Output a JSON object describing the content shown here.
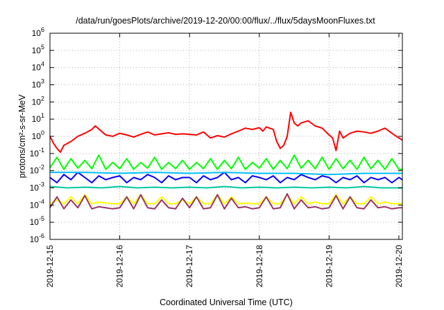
{
  "chart_data": {
    "type": "line",
    "title": "/data/run/goesPlots/archive/2019-12-20/00:00/flux/../flux/5daysMoonFluxes.txt",
    "xlabel": "Coordinated Universal Time (UTC)",
    "ylabel": "protons/cm²-s-sr-MeV",
    "yscale": "log",
    "ylim": [
      1e-06,
      1000000.0
    ],
    "xlim": [
      0,
      5.05
    ],
    "grid": true,
    "x_ticks": [
      {
        "x": 0,
        "label": "2019-12-15"
      },
      {
        "x": 1,
        "label": "2019-12-16"
      },
      {
        "x": 2,
        "label": "2019-12-17"
      },
      {
        "x": 3,
        "label": "2019-12-18"
      },
      {
        "x": 4,
        "label": "2019-12-19"
      },
      {
        "x": 5,
        "label": "2019-12-20"
      }
    ],
    "y_ticks": [
      {
        "base": "10",
        "exp": "-6",
        "value": 1e-06
      },
      {
        "base": "10",
        "exp": "-5",
        "value": 1e-05
      },
      {
        "base": "10",
        "exp": "-4",
        "value": 0.0001
      },
      {
        "base": "10",
        "exp": "-3",
        "value": 0.001
      },
      {
        "base": "10",
        "exp": "-2",
        "value": 0.01
      },
      {
        "base": "10",
        "exp": "-1",
        "value": 0.1
      },
      {
        "base": "10",
        "exp": "0",
        "value": 1
      },
      {
        "base": "10",
        "exp": "1",
        "value": 10
      },
      {
        "base": "10",
        "exp": "2",
        "value": 100
      },
      {
        "base": "10",
        "exp": "3",
        "value": 1000
      },
      {
        "base": "10",
        "exp": "4",
        "value": 10000
      },
      {
        "base": "10",
        "exp": "5",
        "value": 100000
      },
      {
        "base": "10",
        "exp": "6",
        "value": 1000000
      }
    ],
    "series": [
      {
        "color": "#ff0000",
        "x": [
          0,
          0.05,
          0.1,
          0.15,
          0.2,
          0.3,
          0.4,
          0.5,
          0.6,
          0.65,
          0.75,
          0.8,
          0.9,
          1.0,
          1.1,
          1.2,
          1.3,
          1.4,
          1.5,
          1.6,
          1.7,
          1.8,
          1.9,
          2.0,
          2.1,
          2.2,
          2.3,
          2.4,
          2.5,
          2.6,
          2.7,
          2.8,
          2.9,
          3.0,
          3.05,
          3.1,
          3.2,
          3.25,
          3.3,
          3.35,
          3.4,
          3.45,
          3.5,
          3.55,
          3.6,
          3.7,
          3.8,
          3.9,
          4.0,
          4.05,
          4.1,
          4.15,
          4.2,
          4.3,
          4.4,
          4.5,
          4.6,
          4.7,
          4.8,
          4.9,
          5.0,
          5.05
        ],
        "y": [
          1.0,
          0.4,
          0.2,
          0.12,
          0.3,
          0.5,
          1.0,
          1.5,
          2.5,
          4.0,
          1.8,
          1.2,
          1.0,
          1.5,
          1.2,
          0.9,
          1.3,
          1.8,
          1.2,
          1.4,
          1.6,
          1.3,
          1.4,
          1.3,
          1.2,
          1.8,
          0.8,
          1.1,
          0.9,
          1.4,
          2.0,
          3.0,
          2.5,
          3.2,
          2.0,
          3.5,
          2.5,
          0.5,
          0.2,
          0.3,
          1.0,
          25,
          6.0,
          4.0,
          6.0,
          8.0,
          4.0,
          3.0,
          1.2,
          0.8,
          0.15,
          2.0,
          0.8,
          1.5,
          2.0,
          1.8,
          1.5,
          2.0,
          3.0,
          1.5,
          0.8,
          0.6
        ]
      },
      {
        "color": "#00ff00",
        "x": [
          0,
          0.1,
          0.2,
          0.3,
          0.4,
          0.5,
          0.6,
          0.7,
          0.8,
          0.9,
          1.0,
          1.1,
          1.2,
          1.3,
          1.4,
          1.5,
          1.6,
          1.7,
          1.8,
          1.9,
          2.0,
          2.1,
          2.2,
          2.3,
          2.4,
          2.5,
          2.6,
          2.7,
          2.8,
          2.9,
          3.0,
          3.1,
          3.2,
          3.3,
          3.4,
          3.5,
          3.6,
          3.7,
          3.8,
          3.9,
          4.0,
          4.1,
          4.2,
          4.3,
          4.4,
          4.5,
          4.6,
          4.7,
          4.8,
          4.9,
          5.0,
          5.05
        ],
        "y": [
          0.015,
          0.06,
          0.012,
          0.05,
          0.014,
          0.04,
          0.013,
          0.08,
          0.012,
          0.03,
          0.013,
          0.05,
          0.012,
          0.03,
          0.014,
          0.06,
          0.012,
          0.03,
          0.013,
          0.04,
          0.012,
          0.03,
          0.013,
          0.05,
          0.012,
          0.04,
          0.013,
          0.06,
          0.012,
          0.03,
          0.014,
          0.05,
          0.012,
          0.04,
          0.013,
          0.08,
          0.014,
          0.04,
          0.013,
          0.06,
          0.012,
          0.05,
          0.013,
          0.04,
          0.012,
          0.06,
          0.013,
          0.04,
          0.012,
          0.05,
          0.012,
          0.012
        ]
      },
      {
        "color": "#0000ff",
        "x": [
          0,
          0.1,
          0.2,
          0.3,
          0.4,
          0.5,
          0.6,
          0.7,
          0.8,
          0.9,
          1.0,
          1.1,
          1.2,
          1.3,
          1.4,
          1.5,
          1.6,
          1.7,
          1.8,
          1.9,
          2.0,
          2.1,
          2.2,
          2.3,
          2.4,
          2.5,
          2.6,
          2.7,
          2.8,
          2.9,
          3.0,
          3.1,
          3.2,
          3.3,
          3.4,
          3.5,
          3.6,
          3.7,
          3.8,
          3.9,
          4.0,
          4.1,
          4.2,
          4.3,
          4.4,
          4.5,
          4.6,
          4.7,
          4.8,
          4.9,
          5.0,
          5.05
        ],
        "y": [
          0.004,
          0.002,
          0.006,
          0.003,
          0.008,
          0.004,
          0.002,
          0.005,
          0.003,
          0.004,
          0.005,
          0.002,
          0.004,
          0.003,
          0.006,
          0.004,
          0.002,
          0.005,
          0.003,
          0.004,
          0.004,
          0.002,
          0.005,
          0.003,
          0.004,
          0.008,
          0.003,
          0.004,
          0.002,
          0.005,
          0.004,
          0.003,
          0.005,
          0.002,
          0.004,
          0.003,
          0.006,
          0.004,
          0.003,
          0.005,
          0.004,
          0.002,
          0.004,
          0.003,
          0.005,
          0.002,
          0.004,
          0.003,
          0.004,
          0.002,
          0.004,
          0.003
        ]
      },
      {
        "color": "#00bfff",
        "x": [
          0,
          0.5,
          1.0,
          1.5,
          2.0,
          2.5,
          3.0,
          3.5,
          4.0,
          4.5,
          5.0,
          5.05
        ],
        "y": [
          0.008,
          0.008,
          0.007,
          0.008,
          0.007,
          0.008,
          0.007,
          0.007,
          0.006,
          0.007,
          0.007,
          0.007
        ]
      },
      {
        "color": "#00c8a0",
        "x": [
          0,
          0.25,
          0.5,
          0.75,
          1.0,
          1.25,
          1.5,
          1.75,
          2.0,
          2.25,
          2.5,
          2.75,
          3.0,
          3.25,
          3.5,
          3.75,
          4.0,
          4.25,
          4.5,
          4.75,
          5.0,
          5.05
        ],
        "y": [
          0.0012,
          0.001,
          0.0011,
          0.001,
          0.0012,
          0.001,
          0.0011,
          0.001,
          0.0011,
          0.001,
          0.0012,
          0.001,
          0.0011,
          0.001,
          0.0011,
          0.001,
          0.0011,
          0.001,
          0.0012,
          0.001,
          0.001,
          0.001
        ]
      },
      {
        "color": "#ffff00",
        "x": [
          0,
          0.1,
          0.2,
          0.3,
          0.4,
          0.5,
          0.6,
          0.7,
          0.8,
          0.9,
          1.0,
          1.1,
          1.2,
          1.3,
          1.4,
          1.5,
          1.6,
          1.7,
          1.8,
          1.9,
          2.0,
          2.1,
          2.2,
          2.3,
          2.4,
          2.5,
          2.6,
          2.7,
          2.8,
          2.9,
          3.0,
          3.1,
          3.2,
          3.3,
          3.4,
          3.5,
          3.6,
          3.7,
          3.8,
          3.9,
          4.0,
          4.1,
          4.2,
          4.3,
          4.4,
          4.5,
          4.6,
          4.7,
          4.8,
          4.9,
          5.0,
          5.05
        ],
        "y": [
          0.00012,
          0.0002,
          0.00012,
          0.0003,
          0.00012,
          0.0004,
          0.00012,
          0.00015,
          0.00013,
          0.00012,
          0.00012,
          0.0003,
          0.00012,
          0.0004,
          0.00012,
          0.00012,
          0.0003,
          0.00012,
          0.00012,
          0.0002,
          0.00012,
          0.0003,
          0.00012,
          0.00012,
          0.0004,
          0.00012,
          0.0003,
          0.00012,
          0.00013,
          0.00012,
          0.00012,
          0.0003,
          0.00012,
          0.00012,
          0.0004,
          0.00012,
          0.0003,
          0.00012,
          0.00015,
          0.00012,
          0.00012,
          0.0004,
          0.00012,
          0.0003,
          0.00012,
          0.00012,
          0.0003,
          0.00012,
          0.00015,
          0.00012,
          0.00012,
          0.00012
        ]
      },
      {
        "color": "#993366",
        "x": [
          0,
          0.1,
          0.2,
          0.3,
          0.4,
          0.5,
          0.6,
          0.7,
          0.8,
          0.9,
          1.0,
          1.1,
          1.2,
          1.3,
          1.4,
          1.5,
          1.6,
          1.7,
          1.8,
          1.9,
          2.0,
          2.1,
          2.2,
          2.3,
          2.4,
          2.5,
          2.6,
          2.7,
          2.8,
          2.9,
          3.0,
          3.1,
          3.2,
          3.3,
          3.4,
          3.5,
          3.6,
          3.7,
          3.8,
          3.9,
          4.0,
          4.1,
          4.2,
          4.3,
          4.4,
          4.5,
          4.6,
          4.7,
          4.8,
          4.9,
          5.0,
          5.05
        ],
        "y": [
          7e-05,
          0.0003,
          6e-05,
          0.0002,
          7e-05,
          0.00035,
          6e-05,
          8e-05,
          7e-05,
          6e-05,
          7e-05,
          0.0003,
          6e-05,
          0.0004,
          7e-05,
          6e-05,
          0.0002,
          7e-05,
          6e-05,
          0.00025,
          7e-05,
          0.0003,
          6e-05,
          7e-05,
          0.0004,
          6e-05,
          0.00025,
          7e-05,
          8e-05,
          6e-05,
          7e-05,
          0.0003,
          6e-05,
          7e-05,
          0.00045,
          6e-05,
          0.0002,
          7e-05,
          8e-05,
          6e-05,
          7e-05,
          0.00035,
          6e-05,
          0.0003,
          7e-05,
          6e-05,
          0.0002,
          7e-05,
          8e-05,
          6e-05,
          7e-05,
          7e-05
        ]
      }
    ]
  }
}
